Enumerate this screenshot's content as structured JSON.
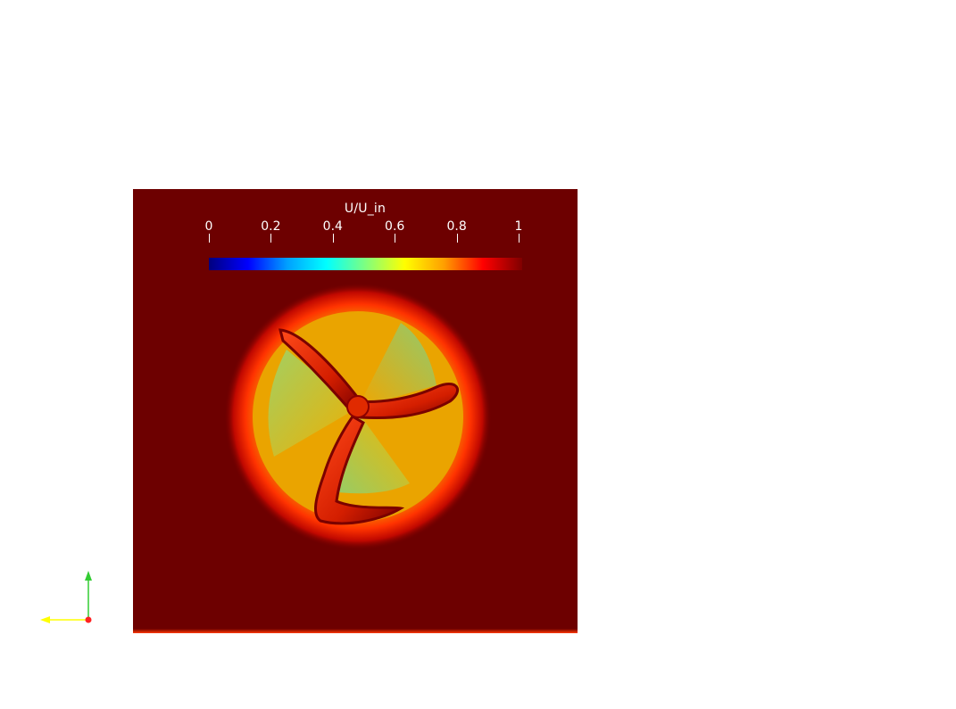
{
  "colorbar": {
    "title": "U/U_in",
    "tick_labels": [
      "0",
      "0.2",
      "0.4",
      "0.6",
      "0.8",
      "1"
    ],
    "colormap": [
      "#00007f",
      "#0000ff",
      "#00a0ff",
      "#00ffff",
      "#7fff7f",
      "#ffff00",
      "#ff9f00",
      "#ff0000",
      "#7f0000"
    ]
  },
  "field": {
    "background_color": "#6d0000",
    "rotor_wake_colors": [
      "#e8b000",
      "#b9d75a",
      "#ff8a00",
      "#ff2200"
    ],
    "blade_count": 3
  },
  "axes": {
    "y_axis_color": "#33cc33",
    "x_axis_color": "#ffff00",
    "origin_color": "#ff2222"
  }
}
